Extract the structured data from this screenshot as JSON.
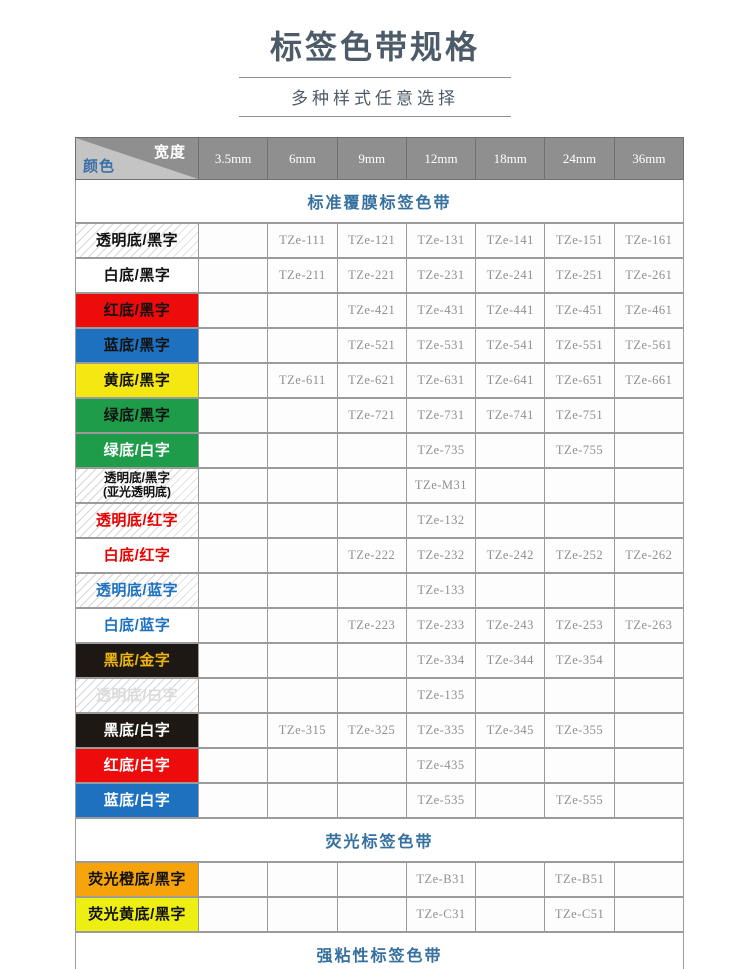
{
  "page": {
    "title": "标签色带规格",
    "subtitle": "多种样式任意选择"
  },
  "colors": {
    "title_text": "#4d5b68",
    "rule_line": "#8b9199",
    "header_bg": "#8f8f8f",
    "header_border": "#6f6f6f",
    "corner_light": "#c4c4c4",
    "corner_label_blue": "#3c71a8",
    "section_title": "#36709f",
    "grid_border": "#9b9b9b",
    "model_text": "#8f8f8f"
  },
  "table": {
    "corner": {
      "top_label": "宽度",
      "bottom_label": "颜色"
    },
    "columns": [
      "3.5mm",
      "6mm",
      "9mm",
      "12mm",
      "18mm",
      "24mm",
      "36mm"
    ],
    "swatches": {
      "hatch-black": {
        "bg": "#ffffff",
        "fg": "#111111",
        "hatch": true
      },
      "white-black": {
        "bg": "#ffffff",
        "fg": "#111111"
      },
      "red-black": {
        "bg": "#ee0b0c",
        "fg": "#111111"
      },
      "blue-black": {
        "bg": "#1d71bf",
        "fg": "#111111"
      },
      "yellow-black": {
        "bg": "#f4e712",
        "fg": "#111111"
      },
      "green-black": {
        "bg": "#1e9c4a",
        "fg": "#111111"
      },
      "green-white": {
        "bg": "#1e9c4a",
        "fg": "#ffffff"
      },
      "hatch-red": {
        "bg": "#ffffff",
        "fg": "#e60000",
        "hatch": true
      },
      "white-red": {
        "bg": "#ffffff",
        "fg": "#e60000"
      },
      "hatch-blue": {
        "bg": "#ffffff",
        "fg": "#1d71bf",
        "hatch": true
      },
      "white-blue": {
        "bg": "#ffffff",
        "fg": "#1d71bf"
      },
      "black-gold": {
        "bg": "#1d1814",
        "fg": "#efb410"
      },
      "hatch-white": {
        "bg": "#ffffff",
        "fg": "#dcdcdc",
        "hatch": true
      },
      "black-white": {
        "bg": "#1d1814",
        "fg": "#ffffff"
      },
      "red-white": {
        "bg": "#ee0b0c",
        "fg": "#ffffff"
      },
      "blue-white": {
        "bg": "#1d71bf",
        "fg": "#ffffff"
      },
      "fluor-orange-black": {
        "bg": "#f6a40a",
        "fg": "#111111"
      },
      "fluor-yellow-black": {
        "bg": "#edee12",
        "fg": "#111111"
      }
    },
    "sections": [
      {
        "title": "标准覆膜标签色带",
        "rows": [
          {
            "label": "透明底/黑字",
            "style": "hatch-black",
            "cells": [
              "",
              "TZe-111",
              "TZe-121",
              "TZe-131",
              "TZe-141",
              "TZe-151",
              "TZe-161"
            ]
          },
          {
            "label": "白底/黑字",
            "style": "white-black",
            "cells": [
              "",
              "TZe-211",
              "TZe-221",
              "TZe-231",
              "TZe-241",
              "TZe-251",
              "TZe-261"
            ]
          },
          {
            "label": "红底/黑字",
            "style": "red-black",
            "cells": [
              "",
              "",
              "TZe-421",
              "TZe-431",
              "TZe-441",
              "TZe-451",
              "TZe-461"
            ]
          },
          {
            "label": "蓝底/黑字",
            "style": "blue-black",
            "cells": [
              "",
              "",
              "TZe-521",
              "TZe-531",
              "TZe-541",
              "TZe-551",
              "TZe-561"
            ]
          },
          {
            "label": "黄底/黑字",
            "style": "yellow-black",
            "cells": [
              "",
              "TZe-611",
              "TZe-621",
              "TZe-631",
              "TZe-641",
              "TZe-651",
              "TZe-661"
            ]
          },
          {
            "label": "绿底/黑字",
            "style": "green-black",
            "cells": [
              "",
              "",
              "TZe-721",
              "TZe-731",
              "TZe-741",
              "TZe-751",
              ""
            ]
          },
          {
            "label": "绿底/白字",
            "style": "green-white",
            "cells": [
              "",
              "",
              "",
              "TZe-735",
              "",
              "TZe-755",
              ""
            ]
          },
          {
            "label": "透明底/黑字",
            "label2": "(亚光透明底)",
            "style": "hatch-black",
            "cells": [
              "",
              "",
              "",
              "TZe-M31",
              "",
              "",
              ""
            ]
          },
          {
            "label": "透明底/红字",
            "style": "hatch-red",
            "cells": [
              "",
              "",
              "",
              "TZe-132",
              "",
              "",
              ""
            ]
          },
          {
            "label": "白底/红字",
            "style": "white-red",
            "cells": [
              "",
              "",
              "TZe-222",
              "TZe-232",
              "TZe-242",
              "TZe-252",
              "TZe-262"
            ]
          },
          {
            "label": "透明底/蓝字",
            "style": "hatch-blue",
            "cells": [
              "",
              "",
              "",
              "TZe-133",
              "",
              "",
              ""
            ]
          },
          {
            "label": "白底/蓝字",
            "style": "white-blue",
            "cells": [
              "",
              "",
              "TZe-223",
              "TZe-233",
              "TZe-243",
              "TZe-253",
              "TZe-263"
            ]
          },
          {
            "label": "黑底/金字",
            "style": "black-gold",
            "cells": [
              "",
              "",
              "",
              "TZe-334",
              "TZe-344",
              "TZe-354",
              ""
            ]
          },
          {
            "label": "透明底/白字",
            "style": "hatch-white",
            "cells": [
              "",
              "",
              "",
              "TZe-135",
              "",
              "",
              ""
            ]
          },
          {
            "label": "黑底/白字",
            "style": "black-white",
            "cells": [
              "",
              "TZe-315",
              "TZe-325",
              "TZe-335",
              "TZe-345",
              "TZe-355",
              ""
            ]
          },
          {
            "label": "红底/白字",
            "style": "red-white",
            "cells": [
              "",
              "",
              "",
              "TZe-435",
              "",
              "",
              ""
            ]
          },
          {
            "label": "蓝底/白字",
            "style": "blue-white",
            "cells": [
              "",
              "",
              "",
              "TZe-535",
              "",
              "TZe-555",
              ""
            ]
          }
        ]
      },
      {
        "title": "荧光标签色带",
        "rows": [
          {
            "label": "荧光橙底/黑字",
            "style": "fluor-orange-black",
            "cells": [
              "",
              "",
              "",
              "TZe-B31",
              "",
              "TZe-B51",
              ""
            ]
          },
          {
            "label": "荧光黄底/黑字",
            "style": "fluor-yellow-black",
            "cells": [
              "",
              "",
              "",
              "TZe-C31",
              "",
              "TZe-C51",
              ""
            ]
          }
        ]
      },
      {
        "title": "强粘性标签色带",
        "rows": []
      }
    ]
  }
}
